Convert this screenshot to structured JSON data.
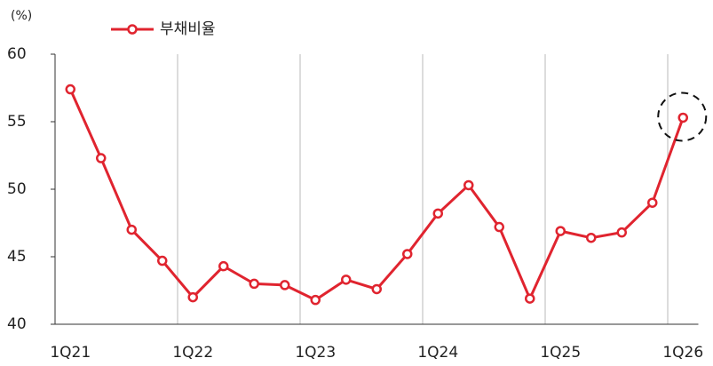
{
  "chart_data": {
    "type": "line",
    "y_unit": "(%)",
    "categories": [
      "1Q21",
      null,
      null,
      null,
      "1Q22",
      null,
      null,
      null,
      "1Q23",
      null,
      null,
      null,
      "1Q24",
      null,
      null,
      null,
      "1Q25",
      null,
      null,
      null,
      "1Q26"
    ],
    "series": [
      {
        "name": "부채비율",
        "color": "#e0242f",
        "values": [
          57.4,
          52.3,
          47.0,
          44.7,
          42.0,
          44.3,
          43.0,
          42.9,
          41.8,
          43.3,
          42.6,
          45.2,
          48.2,
          50.3,
          47.2,
          41.9,
          46.9,
          46.4,
          46.8,
          49.0,
          55.3
        ]
      }
    ],
    "ylim": [
      40,
      60
    ],
    "yticks": [
      40,
      45,
      50,
      55,
      60
    ],
    "legend": "top-left"
  }
}
